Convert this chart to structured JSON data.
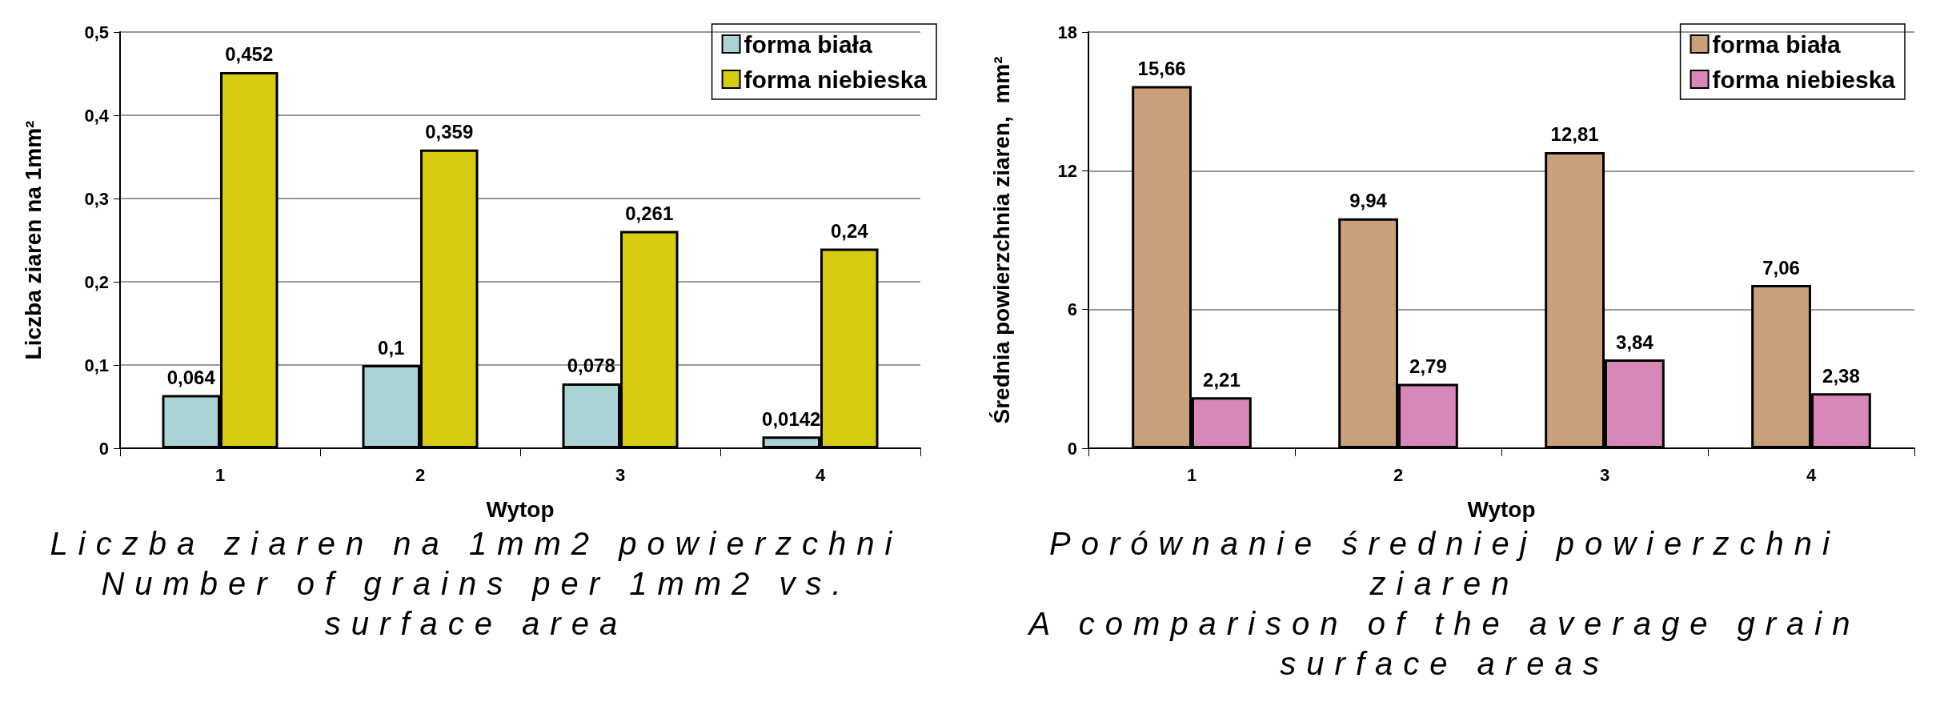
{
  "chart_data": [
    {
      "type": "bar",
      "xlabel": "Wytop",
      "ylabel": "Liczba ziaren na 1mm²",
      "categories": [
        "1",
        "2",
        "3",
        "4"
      ],
      "series": [
        {
          "name": "forma biała",
          "color": "#a9d3d6",
          "values": [
            0.064,
            0.1,
            0.078,
            0.0142
          ],
          "value_labels": [
            "0,064",
            "0,1",
            "0,078",
            "0,0142"
          ]
        },
        {
          "name": "forma niebieska",
          "color": "#d8cc10",
          "values": [
            0.452,
            0.359,
            0.261,
            0.24
          ],
          "value_labels": [
            "0,452",
            "0,359",
            "0,261",
            "0,24"
          ]
        }
      ],
      "ylim": [
        0,
        0.5
      ],
      "yticks": [
        0,
        {
          "value": 0.1,
          "label": "0,1"
        },
        {
          "value": 0.2,
          "label": "0,2"
        },
        {
          "value": 0.3,
          "label": "0,3"
        },
        {
          "value": 0.4,
          "label": "0,4"
        },
        {
          "value": 0.5,
          "label": "0,5"
        }
      ],
      "grid": "y",
      "legend": "top right",
      "annotations": [
        "Liczba ziaren na 1mm2 powierzchni",
        "Number of grains per 1mm2 vs. surface area"
      ]
    },
    {
      "type": "bar",
      "xlabel": "Wytop",
      "ylabel": "Średnia powierzchnia ziaren,  mm²",
      "categories": [
        "1",
        "2",
        "3",
        "4"
      ],
      "series": [
        {
          "name": "forma biała",
          "color": "#c9a07a",
          "values": [
            15.66,
            9.94,
            12.81,
            7.06
          ],
          "value_labels": [
            "15,66",
            "9,94",
            "12,81",
            "7,06"
          ]
        },
        {
          "name": "forma niebieska",
          "color": "#d888b8",
          "values": [
            2.21,
            2.79,
            3.84,
            2.38
          ],
          "value_labels": [
            "2,21",
            "2,79",
            "3,84",
            "2,38"
          ]
        }
      ],
      "ylim": [
        0,
        18
      ],
      "yticks": [
        0,
        6,
        12,
        18
      ],
      "grid": "y",
      "legend": "top right",
      "annotations": [
        "Porównanie średniej powierzchni ziaren",
        "A comparison of the average grain surface areas"
      ]
    }
  ]
}
